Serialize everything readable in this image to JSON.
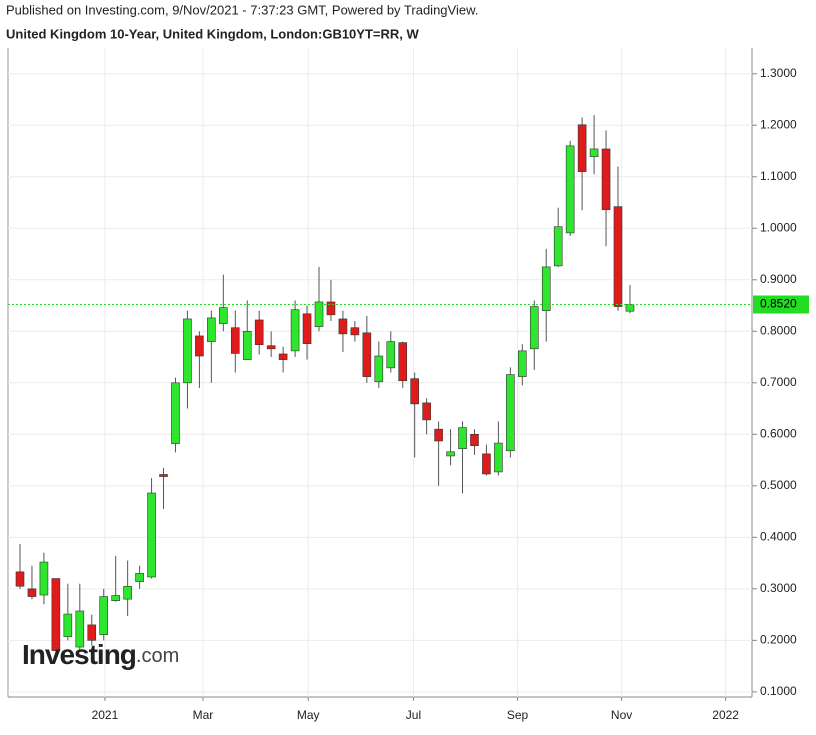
{
  "chart_data": {
    "type": "candlestick",
    "published": "Published on Investing.com, 9/Nov/2021 - 7:37:23 GMT, Powered by TradingView.",
    "title": "United Kingdom 10-Year, United Kingdom, London:GB10YT=RR, W",
    "watermark": [
      "Investing",
      ".com"
    ],
    "up_color": "#2ee62e",
    "down_color": "#e01b1b",
    "grid": true,
    "ylim": [
      0.09,
      1.35
    ],
    "yticks": [
      {
        "value": 1.3,
        "label": "1.3000"
      },
      {
        "value": 1.2,
        "label": "1.2000"
      },
      {
        "value": 1.1,
        "label": "1.1000"
      },
      {
        "value": 1.0,
        "label": "1.0000"
      },
      {
        "value": 0.9,
        "label": "0.9000"
      },
      {
        "value": 0.8,
        "label": "0.8000"
      },
      {
        "value": 0.7,
        "label": "0.7000"
      },
      {
        "value": 0.6,
        "label": "0.6000"
      },
      {
        "value": 0.5,
        "label": "0.5000"
      },
      {
        "value": 0.4,
        "label": "0.4000"
      },
      {
        "value": 0.3,
        "label": "0.3000"
      },
      {
        "value": 0.2,
        "label": "0.2000"
      },
      {
        "value": 0.1,
        "label": "0.1000"
      }
    ],
    "x_labels": [
      "2021",
      "Mar",
      "May",
      "Jul",
      "Sep",
      "Nov",
      "2022"
    ],
    "price_line": {
      "value": 0.852,
      "label": "0.8520",
      "color": "#22dd22"
    },
    "open": [
      0.333,
      0.3,
      0.288,
      0.32,
      0.207,
      0.187,
      0.23,
      0.211,
      0.277,
      0.28,
      0.314,
      0.323,
      0.522,
      0.582,
      0.7,
      0.791,
      0.78,
      0.815,
      0.807,
      0.745,
      0.822,
      0.772,
      0.756,
      0.762,
      0.834,
      0.809,
      0.857,
      0.824,
      0.807,
      0.797,
      0.702,
      0.729,
      0.778,
      0.708,
      0.661,
      0.61,
      0.558,
      0.572,
      0.6,
      0.562,
      0.527,
      0.568,
      0.712,
      0.766,
      0.84,
      0.927,
      0.991,
      1.201,
      1.139,
      1.154,
      1.042,
      0.839
    ],
    "high": [
      0.387,
      0.345,
      0.37,
      0.32,
      0.31,
      0.31,
      0.25,
      0.3,
      0.364,
      0.355,
      0.345,
      0.515,
      0.535,
      0.71,
      0.84,
      0.8,
      0.84,
      0.91,
      0.84,
      0.86,
      0.84,
      0.8,
      0.77,
      0.86,
      0.85,
      0.925,
      0.9,
      0.84,
      0.82,
      0.83,
      0.78,
      0.8,
      0.78,
      0.72,
      0.67,
      0.625,
      0.61,
      0.625,
      0.61,
      0.58,
      0.625,
      0.73,
      0.775,
      0.86,
      0.96,
      1.04,
      1.17,
      1.215,
      1.22,
      1.19,
      1.12,
      0.89
    ],
    "low": [
      0.3,
      0.28,
      0.27,
      0.175,
      0.2,
      0.18,
      0.19,
      0.2,
      0.275,
      0.247,
      0.3,
      0.32,
      0.455,
      0.565,
      0.65,
      0.69,
      0.7,
      0.8,
      0.72,
      0.745,
      0.755,
      0.75,
      0.72,
      0.75,
      0.745,
      0.8,
      0.82,
      0.76,
      0.78,
      0.7,
      0.69,
      0.72,
      0.69,
      0.555,
      0.6,
      0.5,
      0.54,
      0.485,
      0.56,
      0.52,
      0.52,
      0.555,
      0.695,
      0.725,
      0.78,
      0.925,
      0.985,
      1.035,
      1.105,
      0.965,
      0.84,
      0.835
    ],
    "close": [
      0.305,
      0.285,
      0.352,
      0.18,
      0.251,
      0.257,
      0.2,
      0.285,
      0.287,
      0.305,
      0.33,
      0.486,
      0.518,
      0.7,
      0.824,
      0.752,
      0.826,
      0.846,
      0.757,
      0.8,
      0.774,
      0.766,
      0.745,
      0.842,
      0.776,
      0.857,
      0.832,
      0.795,
      0.793,
      0.712,
      0.752,
      0.78,
      0.704,
      0.659,
      0.628,
      0.587,
      0.566,
      0.613,
      0.578,
      0.523,
      0.583,
      0.716,
      0.762,
      0.848,
      0.925,
      1.003,
      1.16,
      1.11,
      1.154,
      1.036,
      0.848,
      0.852
    ]
  }
}
